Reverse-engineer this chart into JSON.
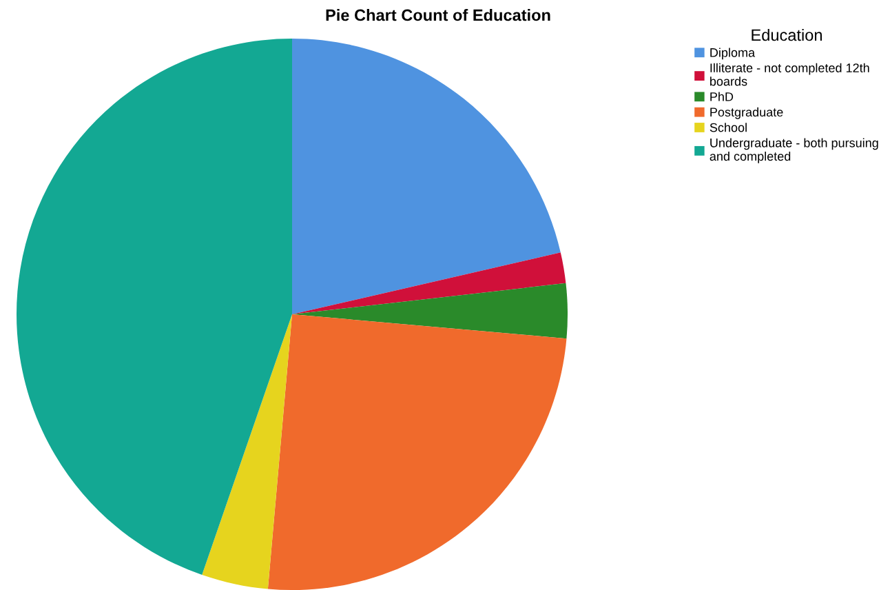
{
  "chart_data": {
    "type": "pie",
    "title": "Pie Chart Count of Education",
    "legend_title": "Education",
    "legend": "top right",
    "categories": [
      "Diploma",
      "Illiterate - not completed 12th\nboards",
      "PhD",
      "Postgraduate",
      "School",
      "Undergraduate - both pursuing\nand completed"
    ],
    "values": [
      21.4,
      1.8,
      3.2,
      25.0,
      3.9,
      44.7
    ],
    "colors": [
      "#4f93e0",
      "#d0103a",
      "#2a8a2a",
      "#f06a2c",
      "#e6d41e",
      "#13a893"
    ]
  }
}
